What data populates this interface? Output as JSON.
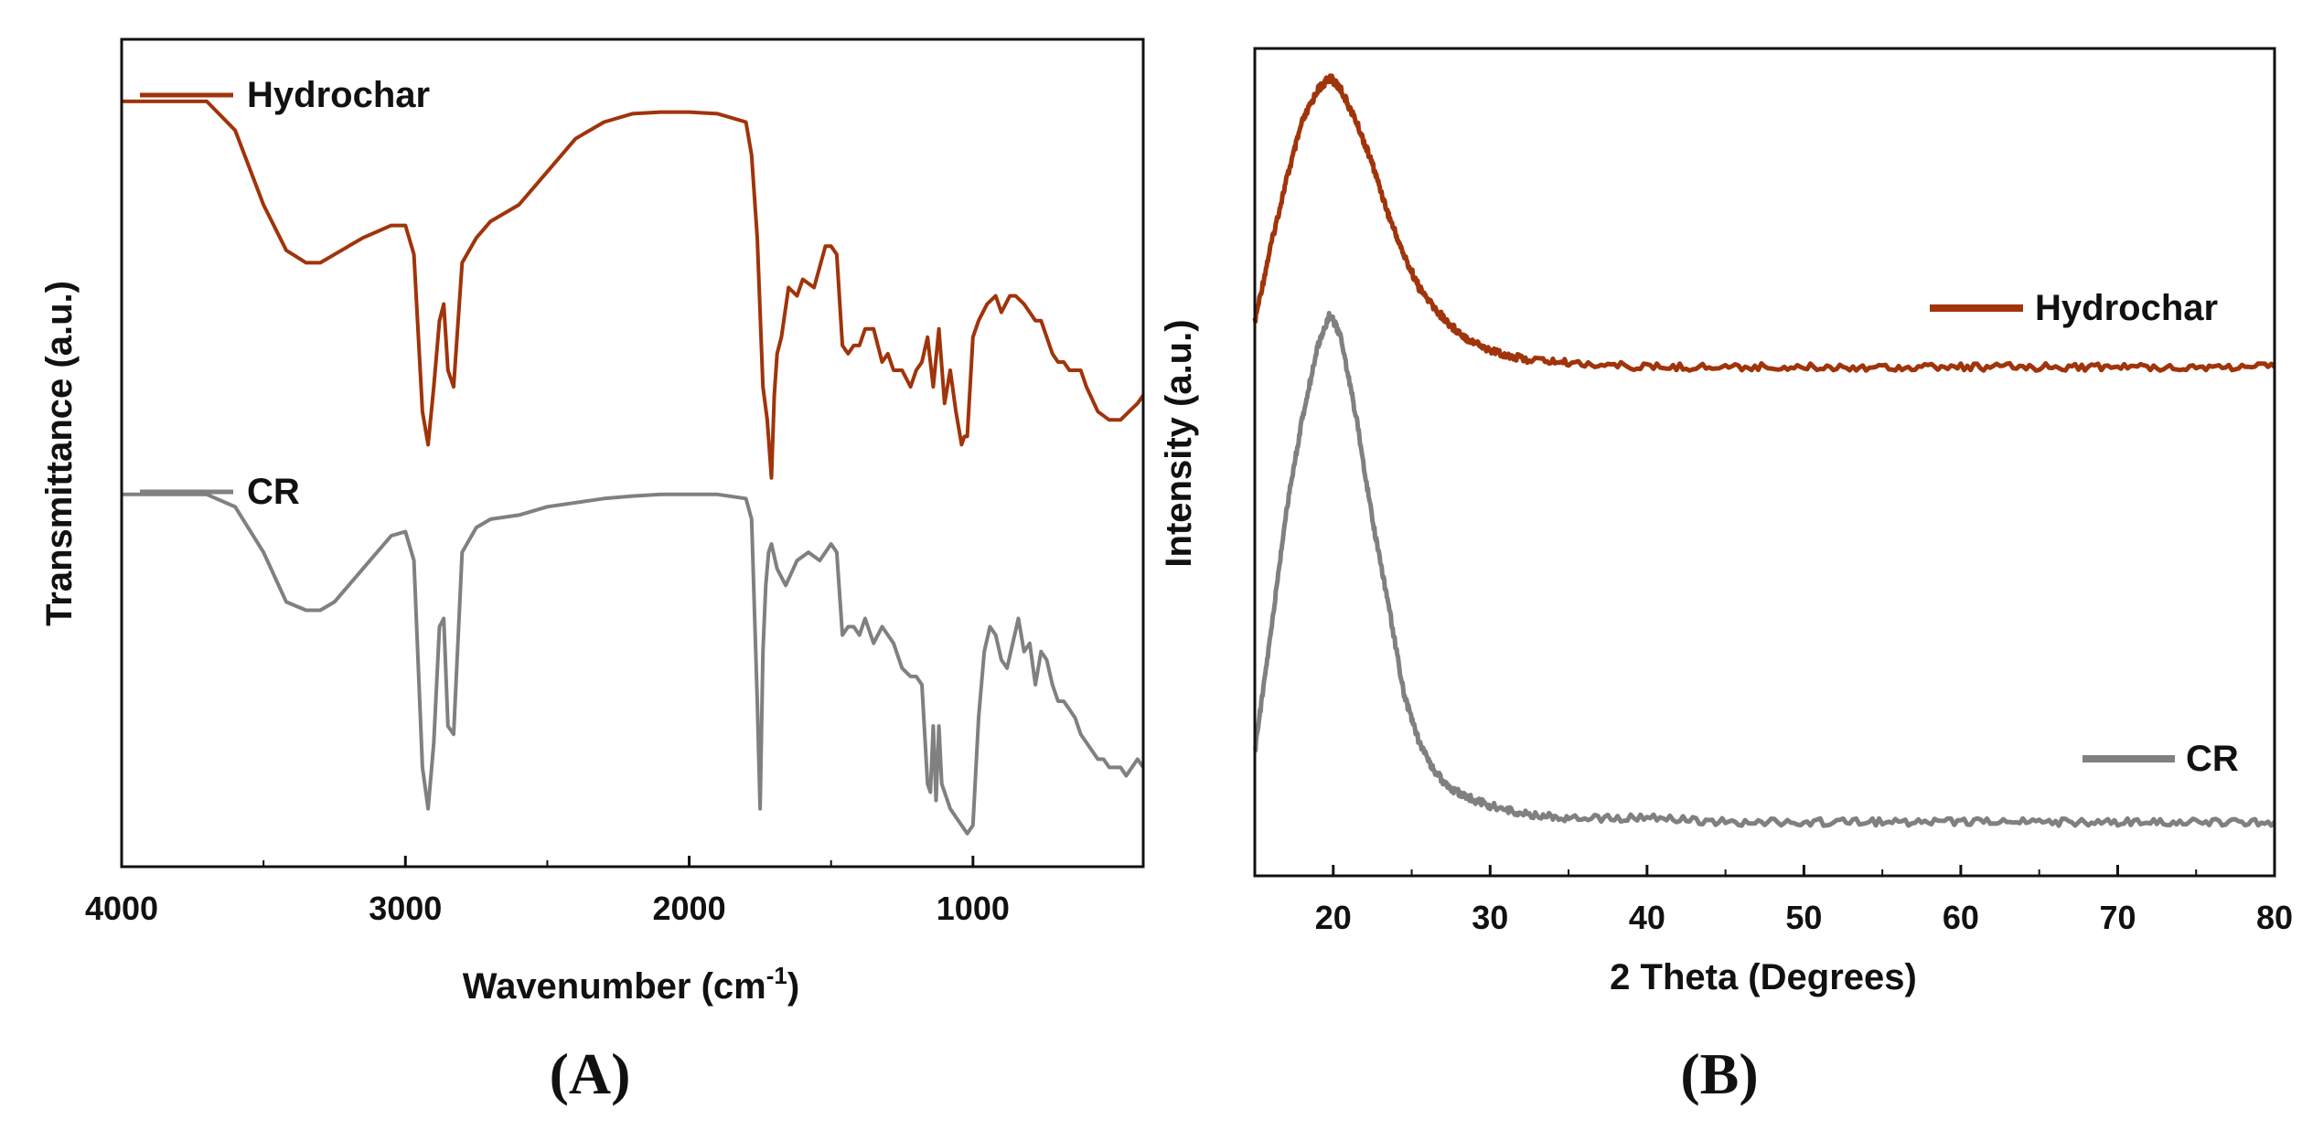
{
  "chart_data": [
    {
      "id": "A",
      "type": "line",
      "panel_label": "A",
      "title": "",
      "xlabel": "Wavenumber (cm",
      "xlabel_sup": "-1",
      "xlabel_end": ")",
      "ylabel": "Transmittance (a.u.)",
      "xlim": [
        4000,
        400
      ],
      "ylim": [
        0,
        100
      ],
      "x_ticks": [
        4000,
        3000,
        2000,
        1000
      ],
      "y_ticks_labels": false,
      "legend": [
        {
          "name": "Hydrochar",
          "color": "#a0340a",
          "placement": "top-left"
        },
        {
          "name": "CR",
          "color": "#808080",
          "placement": "middle-left"
        }
      ],
      "series": [
        {
          "name": "Hydrochar",
          "color": "#a0340a",
          "x": [
            4000,
            3700,
            3600,
            3500,
            3420,
            3350,
            3300,
            3250,
            3150,
            3050,
            3000,
            2970,
            2940,
            2920,
            2900,
            2880,
            2865,
            2850,
            2830,
            2800,
            2750,
            2700,
            2600,
            2500,
            2400,
            2300,
            2200,
            2100,
            2000,
            1900,
            1800,
            1780,
            1760,
            1740,
            1725,
            1710,
            1700,
            1690,
            1675,
            1650,
            1620,
            1600,
            1560,
            1520,
            1500,
            1480,
            1460,
            1440,
            1420,
            1400,
            1380,
            1350,
            1320,
            1300,
            1280,
            1250,
            1220,
            1200,
            1180,
            1160,
            1140,
            1120,
            1100,
            1080,
            1060,
            1040,
            1030,
            1020,
            1000,
            980,
            950,
            920,
            900,
            870,
            850,
            820,
            800,
            780,
            760,
            740,
            720,
            700,
            680,
            660,
            640,
            620,
            600,
            560,
            520,
            480,
            450,
            420,
            400
          ],
          "y": [
            92.5,
            92.5,
            89,
            80,
            74.5,
            73,
            73,
            74,
            76,
            77.5,
            77.5,
            74,
            55,
            51,
            58,
            66,
            68,
            60,
            58,
            73,
            76,
            78,
            80,
            84,
            88,
            90,
            91,
            91.2,
            91.2,
            91,
            90,
            86,
            76,
            58,
            54,
            47,
            57,
            62,
            64,
            70,
            69,
            71,
            70,
            75,
            75,
            74,
            63,
            62,
            63,
            63,
            65,
            65,
            61,
            62,
            60,
            60,
            58,
            60,
            61,
            64,
            58,
            65,
            56,
            60,
            55,
            51,
            52,
            52,
            64,
            66,
            68,
            69,
            67,
            69,
            69,
            68,
            67,
            66,
            66,
            64,
            62,
            61,
            61,
            60,
            60,
            60,
            58,
            55,
            54,
            54,
            55,
            56,
            57
          ]
        },
        {
          "name": "CR",
          "color": "#808080",
          "x": [
            4000,
            3700,
            3600,
            3500,
            3420,
            3350,
            3300,
            3250,
            3150,
            3050,
            3000,
            2970,
            2940,
            2920,
            2900,
            2880,
            2865,
            2850,
            2830,
            2800,
            2750,
            2700,
            2600,
            2500,
            2400,
            2300,
            2200,
            2100,
            2000,
            1900,
            1800,
            1780,
            1760,
            1750,
            1740,
            1730,
            1720,
            1710,
            1690,
            1660,
            1620,
            1580,
            1540,
            1500,
            1480,
            1460,
            1440,
            1420,
            1400,
            1380,
            1350,
            1320,
            1300,
            1280,
            1250,
            1220,
            1200,
            1180,
            1160,
            1150,
            1140,
            1130,
            1120,
            1110,
            1100,
            1080,
            1060,
            1040,
            1020,
            1000,
            980,
            960,
            940,
            920,
            900,
            880,
            860,
            840,
            820,
            800,
            780,
            760,
            740,
            720,
            700,
            680,
            660,
            640,
            620,
            600,
            580,
            560,
            540,
            520,
            500,
            480,
            460,
            440,
            420,
            400
          ],
          "y": [
            45,
            45,
            43.5,
            38,
            32,
            31,
            31,
            32,
            36,
            40,
            40.5,
            37,
            12,
            7,
            15,
            29,
            30,
            17,
            16,
            38,
            41,
            42,
            42.5,
            43.5,
            44,
            44.5,
            44.8,
            45,
            45,
            45,
            44.5,
            42,
            20,
            7,
            26,
            34,
            38,
            39,
            36,
            34,
            37,
            38,
            37,
            39,
            38,
            28,
            29,
            29,
            28,
            30,
            27,
            29,
            28,
            27,
            24,
            23,
            23,
            22,
            10,
            9,
            17,
            8,
            17,
            10,
            9,
            7,
            6,
            5,
            4,
            5,
            18,
            26,
            29,
            28,
            25,
            24,
            27,
            30,
            26,
            27,
            22,
            26,
            25,
            22,
            20,
            20,
            19,
            18,
            16,
            15,
            14,
            13,
            13,
            12,
            12,
            12,
            11,
            12,
            13,
            12
          ]
        }
      ]
    },
    {
      "id": "B",
      "type": "line",
      "panel_label": "B",
      "title": "",
      "xlabel": "2 Theta (Degrees)",
      "ylabel": "Intensity (a.u.)",
      "xlim": [
        15,
        80
      ],
      "ylim": [
        0,
        100
      ],
      "x_ticks": [
        20,
        30,
        40,
        50,
        60,
        70,
        80
      ],
      "y_ticks_labels": false,
      "legend": [
        {
          "name": "Hydrochar",
          "color": "#a0340a",
          "placement": "right-upper"
        },
        {
          "name": "CR",
          "color": "#808080",
          "placement": "right-lower"
        }
      ],
      "series": [
        {
          "name": "Hydrochar",
          "color": "#a0340a",
          "x": [
            15,
            16,
            17,
            18,
            19,
            19.8,
            20.5,
            21.5,
            22.5,
            23.5,
            24.5,
            25.5,
            26.5,
            27.5,
            28.5,
            30,
            32,
            35,
            40,
            45,
            50,
            55,
            60,
            65,
            70,
            75,
            80
          ],
          "y": [
            67,
            76,
            84,
            91,
            95,
            96.5,
            95,
            91,
            86,
            80,
            75,
            71,
            68.5,
            66.5,
            65,
            63.5,
            62.5,
            62,
            61.5,
            61.5,
            61.5,
            61.5,
            61.5,
            61.5,
            61.5,
            61.5,
            61.5
          ]
        },
        {
          "name": "CR",
          "color": "#808080",
          "x": [
            15,
            16,
            17,
            18,
            19,
            19.8,
            20.5,
            21.5,
            22.5,
            23.5,
            24.5,
            25.5,
            26.5,
            27.5,
            28.5,
            30,
            32,
            35,
            40,
            45,
            50,
            55,
            60,
            65,
            70,
            75,
            80
          ],
          "y": [
            15,
            29,
            44,
            55,
            64,
            68,
            65,
            55,
            43,
            33,
            22,
            16,
            12.5,
            10.5,
            9.5,
            8.5,
            7.5,
            7,
            7,
            6.5,
            6.5,
            6.5,
            6.5,
            6.5,
            6.5,
            6.5,
            6.5
          ]
        }
      ]
    }
  ]
}
